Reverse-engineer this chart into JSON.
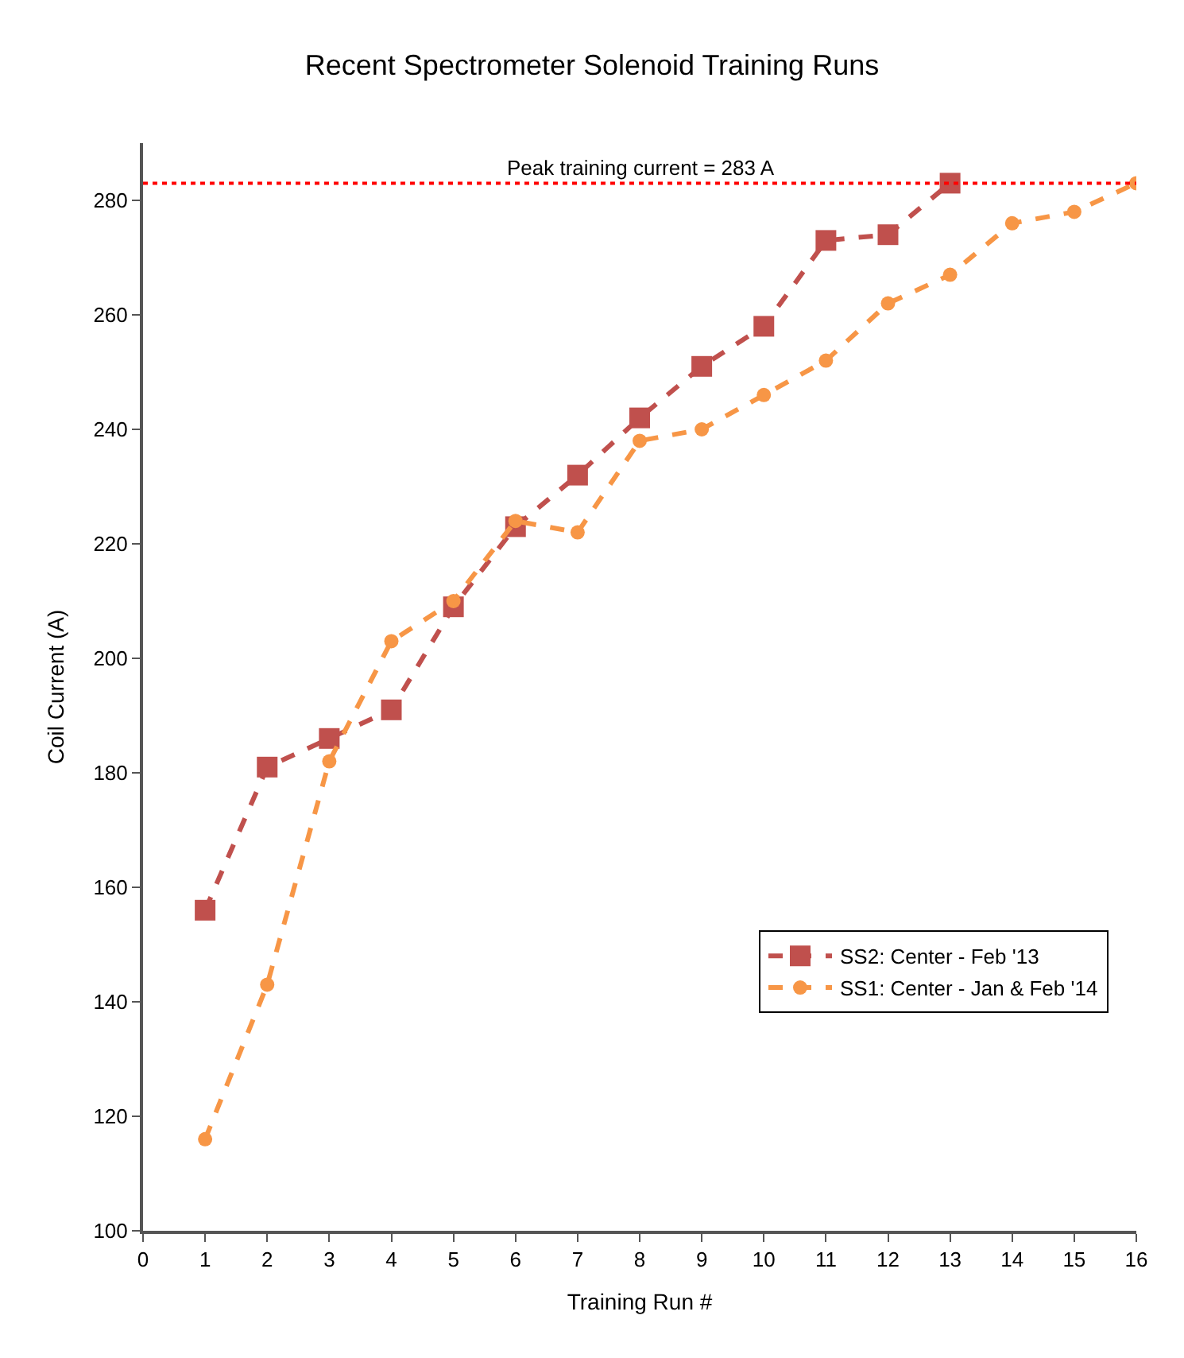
{
  "chart_data": {
    "type": "line",
    "title": "Recent Spectrometer Solenoid Training Runs",
    "xlabel": "Training Run #",
    "ylabel": "Coil Current (A)",
    "x": [
      1,
      2,
      3,
      4,
      5,
      6,
      7,
      8,
      9,
      10,
      11,
      12,
      13,
      14,
      15,
      16
    ],
    "series": [
      {
        "name": "SS2: Center - Feb '13",
        "color": "#c0504d",
        "marker": "square",
        "values": [
          156,
          181,
          186,
          191,
          209,
          223,
          232,
          242,
          251,
          258,
          273,
          274,
          283,
          null,
          null,
          null
        ]
      },
      {
        "name": "SS1: Center - Jan & Feb '14",
        "color": "#f79646",
        "marker": "circle",
        "values": [
          116,
          143,
          182,
          203,
          210,
          224,
          222,
          238,
          240,
          246,
          252,
          262,
          267,
          276,
          278,
          283
        ]
      }
    ],
    "xlim": [
      0,
      16
    ],
    "xticks": [
      0,
      1,
      2,
      3,
      4,
      5,
      6,
      7,
      8,
      9,
      10,
      11,
      12,
      13,
      14,
      15,
      16
    ],
    "ylim": [
      100,
      290
    ],
    "yticks": [
      100,
      120,
      140,
      160,
      180,
      200,
      220,
      240,
      260,
      280
    ],
    "ref_lines": [
      {
        "axis": "y",
        "value": 283,
        "label": "Peak training current = 283 A",
        "color": "#ff0000",
        "line_style": "dotted"
      }
    ],
    "legend": "bottom right",
    "line_style": "dashed"
  }
}
